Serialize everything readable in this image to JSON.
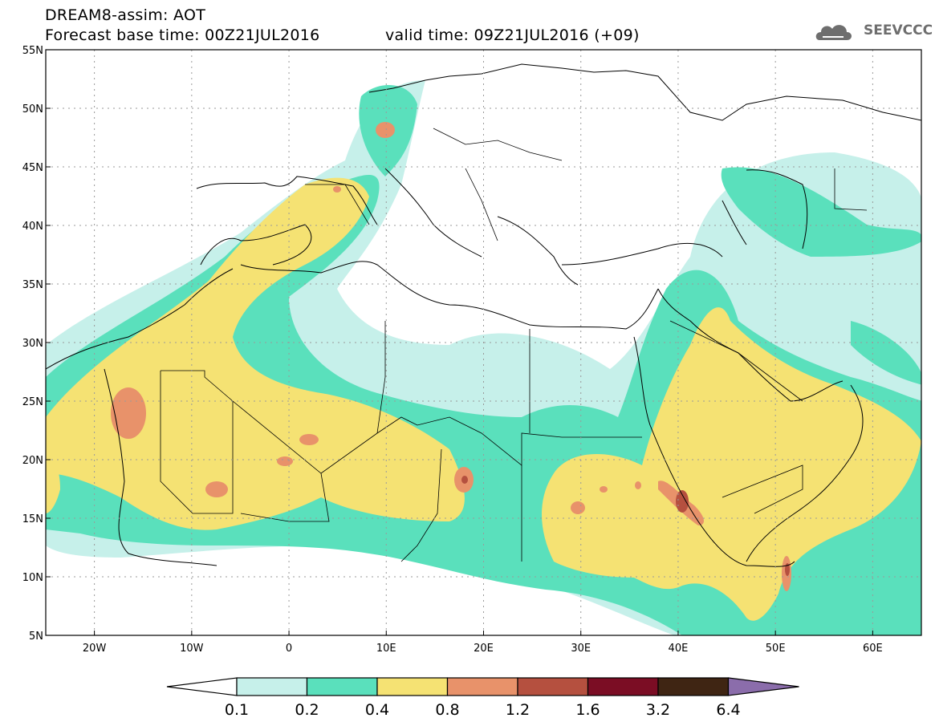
{
  "header": {
    "line1": "DREAM8-assim: AOT",
    "line2": "Forecast base time: 00Z21JUL2016",
    "line3": "valid time: 09Z21JUL2016 (+09)"
  },
  "logo": {
    "text": "SEEVCCC",
    "icon": "cloud-logo-icon",
    "color": "#6e6e6e"
  },
  "map": {
    "lon_range": [
      -25,
      65
    ],
    "lat_range": [
      5,
      55
    ],
    "lon_ticks": [
      {
        "value": -20,
        "label": "20W"
      },
      {
        "value": -10,
        "label": "10W"
      },
      {
        "value": 0,
        "label": "0"
      },
      {
        "value": 10,
        "label": "10E"
      },
      {
        "value": 20,
        "label": "20E"
      },
      {
        "value": 30,
        "label": "30E"
      },
      {
        "value": 40,
        "label": "40E"
      },
      {
        "value": 50,
        "label": "50E"
      },
      {
        "value": 60,
        "label": "60E"
      }
    ],
    "lat_ticks": [
      {
        "value": 55,
        "label": "55N"
      },
      {
        "value": 50,
        "label": "50N"
      },
      {
        "value": 45,
        "label": "45N"
      },
      {
        "value": 40,
        "label": "40N"
      },
      {
        "value": 35,
        "label": "35N"
      },
      {
        "value": 30,
        "label": "30N"
      },
      {
        "value": 25,
        "label": "25N"
      },
      {
        "value": 20,
        "label": "20N"
      },
      {
        "value": 15,
        "label": "15N"
      },
      {
        "value": 10,
        "label": "10N"
      },
      {
        "value": 5,
        "label": "5N"
      }
    ],
    "grid": true
  },
  "colorbar": {
    "levels": [
      "0.1",
      "0.2",
      "0.4",
      "0.8",
      "1.2",
      "1.6",
      "3.2",
      "6.4"
    ],
    "colors": [
      "#c6f0ea",
      "#5ae0bc",
      "#f5e273",
      "#e8926a",
      "#b5503f",
      "#7b0d24",
      "#3f2513",
      "#8b6dab"
    ],
    "under_color": "#ffffff"
  }
}
